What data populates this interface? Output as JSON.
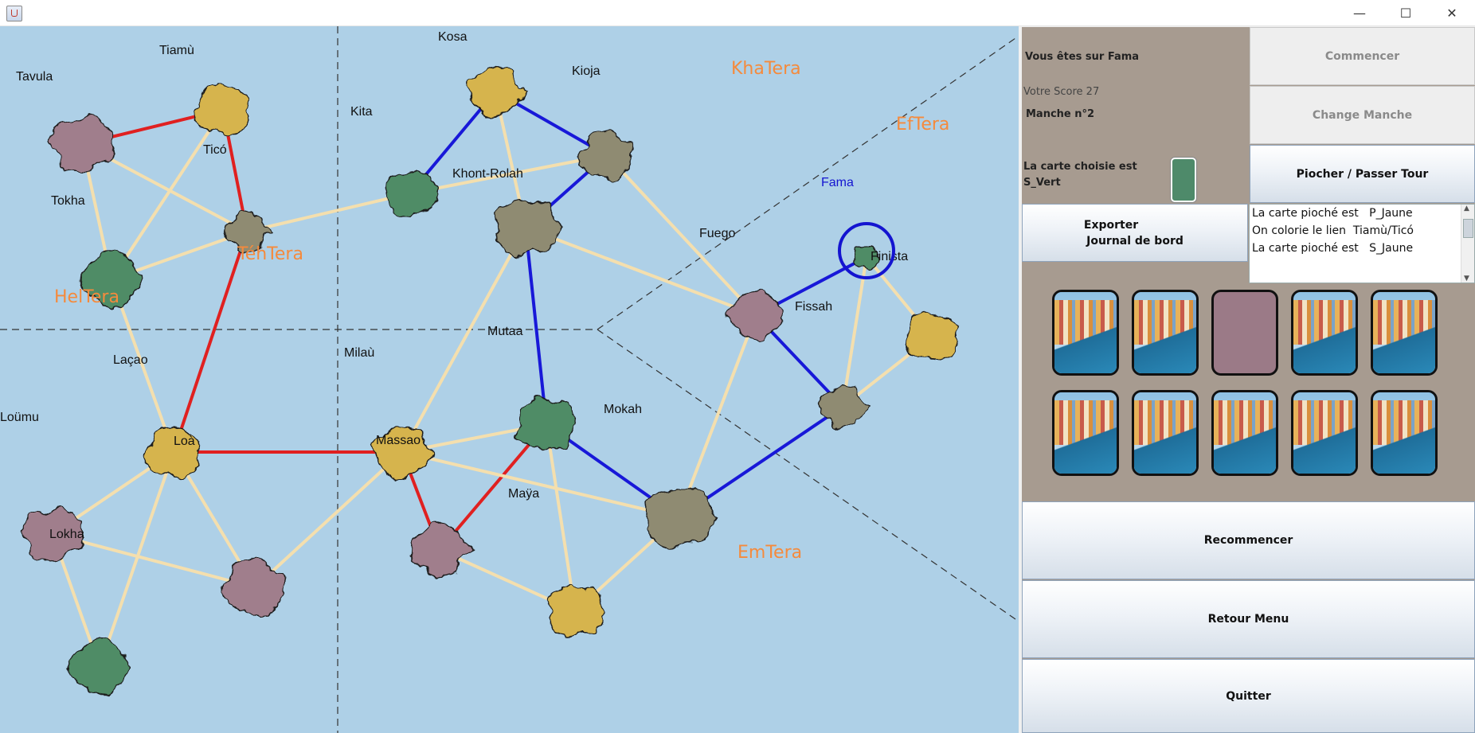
{
  "window": {
    "min_glyph": "—",
    "max_glyph": "☐",
    "close_glyph": "✕"
  },
  "regions": [
    {
      "id": "khatera",
      "label": "KhaTera"
    },
    {
      "id": "eftera",
      "label": "EfTera"
    },
    {
      "id": "tehtera",
      "label": "TéhTera"
    },
    {
      "id": "heltera",
      "label": "HelTera"
    },
    {
      "id": "emtera",
      "label": "EmTera"
    }
  ],
  "islands": [
    {
      "id": "kosa",
      "label": "Kosa",
      "color": "#d6b44e"
    },
    {
      "id": "tiamu",
      "label": "Tiamù",
      "color": "#d6b44e"
    },
    {
      "id": "tavula",
      "label": "Tavula",
      "color": "#a07e8c"
    },
    {
      "id": "kioja",
      "label": "Kioja",
      "color": "#8f8b72"
    },
    {
      "id": "kita",
      "label": "Kita",
      "color": "#4f8c66"
    },
    {
      "id": "tico",
      "label": "Ticó",
      "color": "#8f8b72"
    },
    {
      "id": "khontrolah",
      "label": "Khont-Rolah",
      "color": "#8f8b72"
    },
    {
      "id": "tokha",
      "label": "Tokha",
      "color": "#4f8c66"
    },
    {
      "id": "fama",
      "label": "Fama",
      "color": "#4f8c66"
    },
    {
      "id": "fuego",
      "label": "Fuego",
      "color": "#a07e8c"
    },
    {
      "id": "finista",
      "label": "Finista",
      "color": "#d6b44e"
    },
    {
      "id": "fissah",
      "label": "Fissah",
      "color": "#8f8b72"
    },
    {
      "id": "mutaa",
      "label": "Mutaa",
      "color": "#4f8c66"
    },
    {
      "id": "milau",
      "label": "Milaù",
      "color": "#d6b44e"
    },
    {
      "id": "lacao",
      "label": "Laçao",
      "color": "#d6b44e"
    },
    {
      "id": "loumu",
      "label": "Loümu",
      "color": "#a07e8c"
    },
    {
      "id": "loa",
      "label": "Loà",
      "color": "#a07e8c"
    },
    {
      "id": "mokah",
      "label": "Mokah",
      "color": "#8f8b72"
    },
    {
      "id": "massao",
      "label": "Massao",
      "color": "#a07e8c"
    },
    {
      "id": "maya",
      "label": "Maÿa",
      "color": "#d6b44e"
    },
    {
      "id": "lokha",
      "label": "Lokha",
      "color": "#4f8c66"
    }
  ],
  "links": [
    {
      "a": "tavula",
      "b": "tiamu",
      "color": "red"
    },
    {
      "a": "tiamu",
      "b": "tico",
      "color": "red"
    },
    {
      "a": "tico",
      "b": "lacao",
      "color": "red"
    },
    {
      "a": "lacao",
      "b": "milau",
      "color": "red"
    },
    {
      "a": "milau",
      "b": "massao",
      "color": "red"
    },
    {
      "a": "massao",
      "b": "mutaa",
      "color": "red"
    },
    {
      "a": "kosa",
      "b": "kita",
      "color": "blue"
    },
    {
      "a": "kosa",
      "b": "kioja",
      "color": "blue"
    },
    {
      "a": "kioja",
      "b": "khontrolah",
      "color": "blue"
    },
    {
      "a": "khontrolah",
      "b": "mutaa",
      "color": "blue"
    },
    {
      "a": "mutaa",
      "b": "mokah",
      "color": "blue"
    },
    {
      "a": "mokah",
      "b": "fissah",
      "color": "blue"
    },
    {
      "a": "fissah",
      "b": "fuego",
      "color": "blue"
    },
    {
      "a": "fuego",
      "b": "fama",
      "color": "blue"
    },
    {
      "a": "tavula",
      "b": "tico",
      "color": "beige"
    },
    {
      "a": "tavula",
      "b": "tokha",
      "color": "beige"
    },
    {
      "a": "tiamu",
      "b": "tokha",
      "color": "beige"
    },
    {
      "a": "tokha",
      "b": "tico",
      "color": "beige"
    },
    {
      "a": "tokha",
      "b": "lacao",
      "color": "beige"
    },
    {
      "a": "tico",
      "b": "kita",
      "color": "beige"
    },
    {
      "a": "kita",
      "b": "kioja",
      "color": "beige"
    },
    {
      "a": "kosa",
      "b": "khontrolah",
      "color": "beige"
    },
    {
      "a": "khontrolah",
      "b": "fuego",
      "color": "beige"
    },
    {
      "a": "khontrolah",
      "b": "milau",
      "color": "beige"
    },
    {
      "a": "kioja",
      "b": "fuego",
      "color": "beige"
    },
    {
      "a": "fama",
      "b": "finista",
      "color": "beige"
    },
    {
      "a": "fama",
      "b": "fissah",
      "color": "beige"
    },
    {
      "a": "finista",
      "b": "fissah",
      "color": "beige"
    },
    {
      "a": "fuego",
      "b": "mokah",
      "color": "beige"
    },
    {
      "a": "milau",
      "b": "mutaa",
      "color": "beige"
    },
    {
      "a": "milau",
      "b": "mokah",
      "color": "beige"
    },
    {
      "a": "milau",
      "b": "loa",
      "color": "beige"
    },
    {
      "a": "mutaa",
      "b": "maya",
      "color": "beige"
    },
    {
      "a": "massao",
      "b": "maya",
      "color": "beige"
    },
    {
      "a": "maya",
      "b": "mokah",
      "color": "beige"
    },
    {
      "a": "lacao",
      "b": "loumu",
      "color": "beige"
    },
    {
      "a": "lacao",
      "b": "loa",
      "color": "beige"
    },
    {
      "a": "lacao",
      "b": "lokha",
      "color": "beige"
    },
    {
      "a": "loumu",
      "b": "loa",
      "color": "beige"
    },
    {
      "a": "loumu",
      "b": "lokha",
      "color": "beige"
    }
  ],
  "link_colors": {
    "red": "#e02020",
    "blue": "#1818d8",
    "beige": "#f4dfae"
  },
  "player_position": "fama",
  "panel": {
    "location_text": "Vous êtes sur Fama",
    "score_text": "Votre Score 27",
    "round_text": "Manche n°2",
    "chosen_card_line1": "La carte choisie est",
    "chosen_card_line2": "S_Vert",
    "chosen_card_color": "#4e8a6a",
    "start_button": "Commencer",
    "change_round_button": "Change Manche",
    "draw_button": "Piocher / Passer Tour",
    "export_button_line1": "Exporter",
    "export_button_line2": "Journal de bord",
    "log": [
      "La carte pioché est   P_Jaune",
      "On colorie le lien  Tiamù/Ticó",
      "La carte pioché est   S_Jaune"
    ],
    "cards": [
      {
        "type": "photo"
      },
      {
        "type": "photo"
      },
      {
        "type": "blank"
      },
      {
        "type": "photo"
      },
      {
        "type": "photo"
      },
      {
        "type": "photo"
      },
      {
        "type": "photo"
      },
      {
        "type": "photo"
      },
      {
        "type": "photo"
      },
      {
        "type": "photo"
      }
    ],
    "restart_button": "Recommencer",
    "menu_button": "Retour Menu",
    "quit_button": "Quitter"
  }
}
